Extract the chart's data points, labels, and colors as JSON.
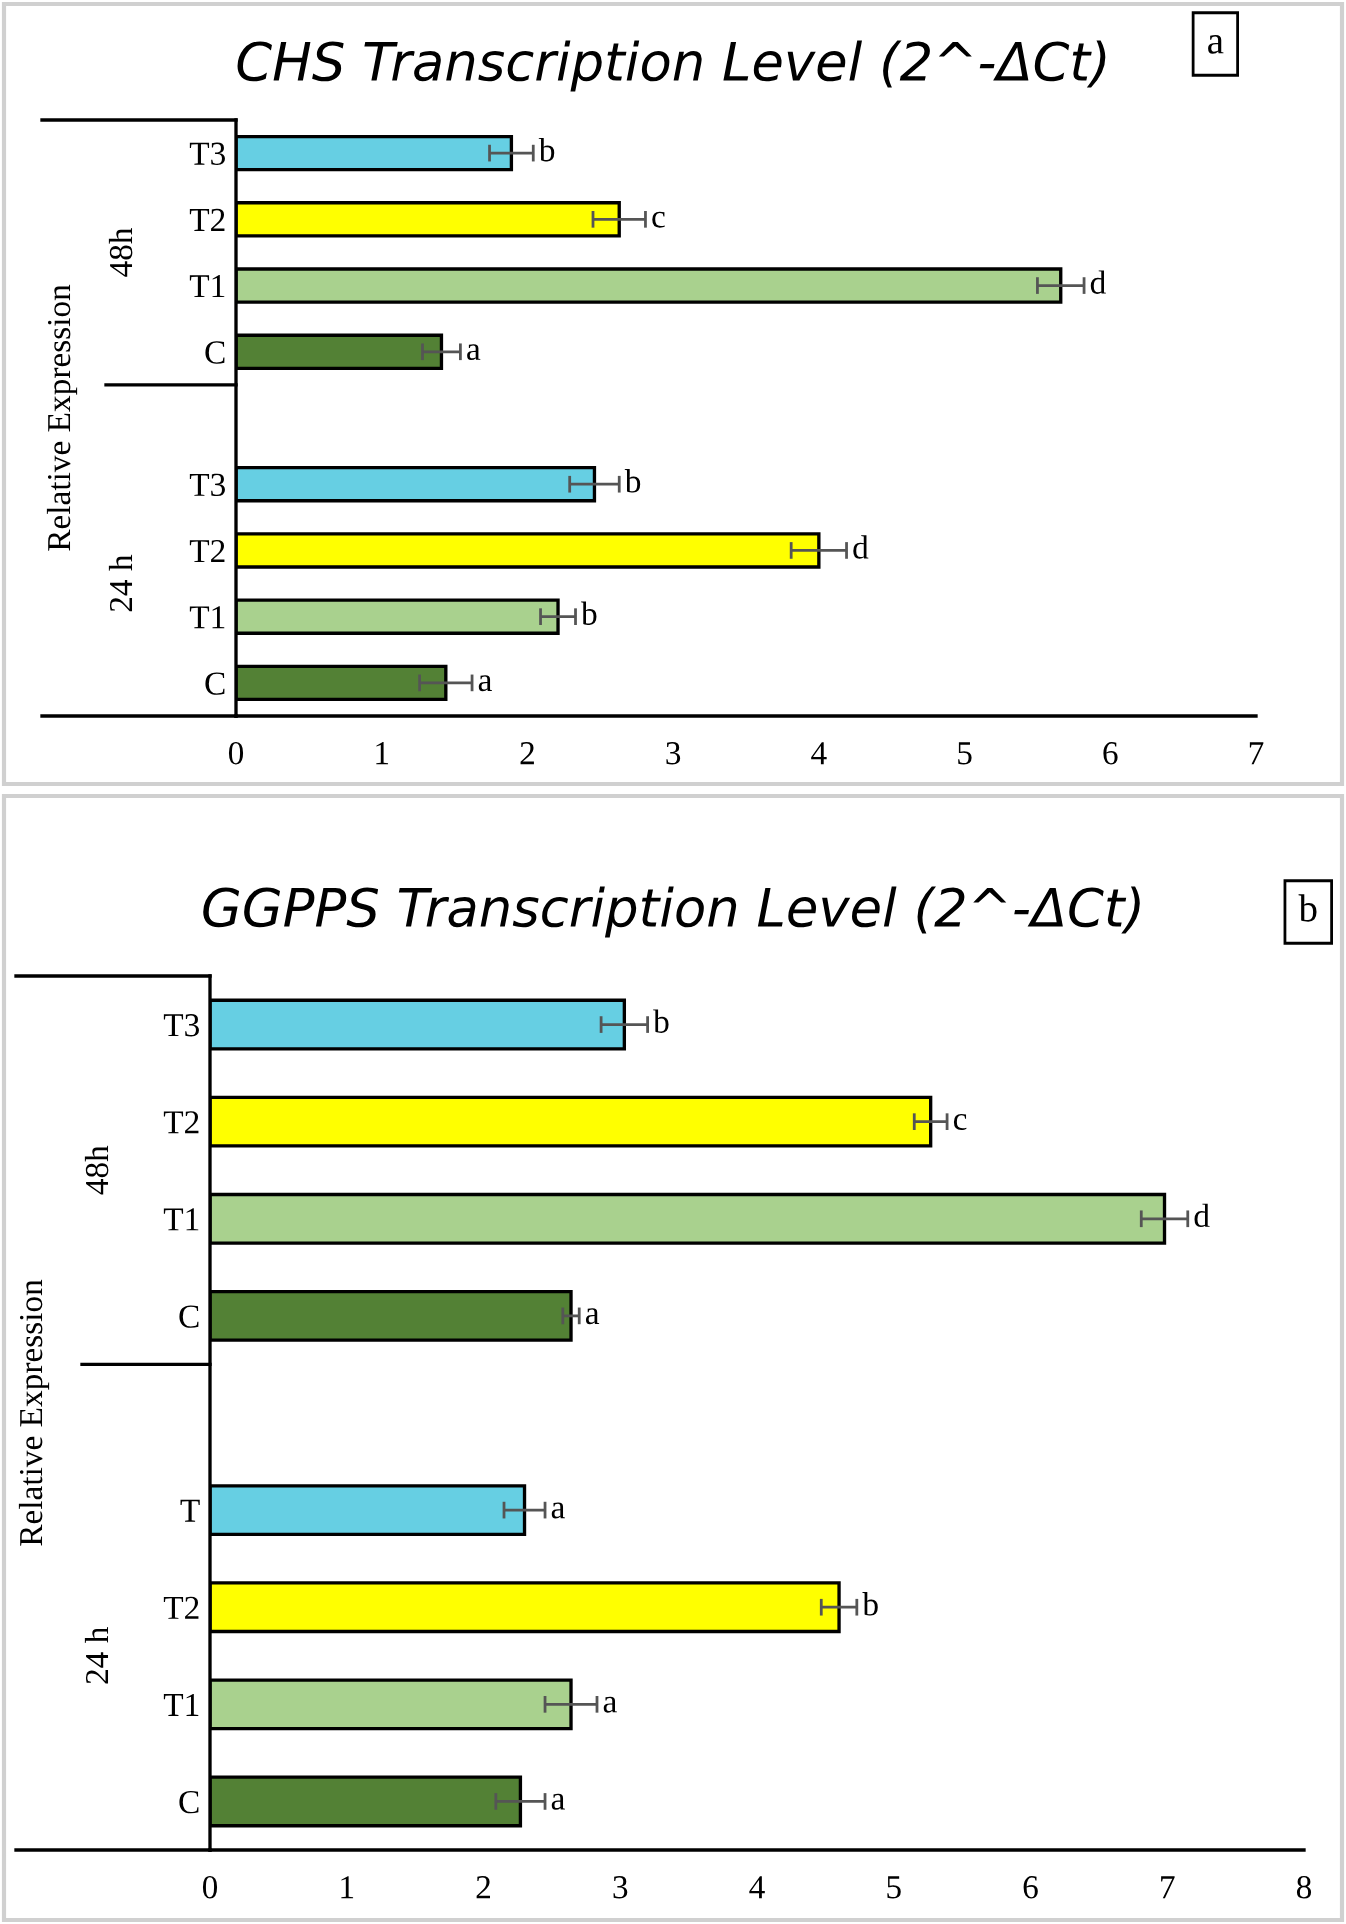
{
  "chart_data": [
    {
      "type": "bar",
      "orientation": "horizontal",
      "title": "CHS Transcription Level (2^-ΔCt)",
      "ylabel": "Relative Expression",
      "categories": [
        "T3",
        "T2",
        "T1",
        "C",
        null,
        "T3",
        "T2",
        "T1",
        "C"
      ],
      "values": [
        1.89,
        2.63,
        5.66,
        1.41,
        null,
        2.46,
        4.0,
        2.21,
        1.44
      ],
      "errors": [
        0.15,
        0.18,
        0.16,
        0.13,
        null,
        0.17,
        0.19,
        0.12,
        0.18
      ],
      "colors": [
        "#66cfe3",
        "#ffff00",
        "#a9d18e",
        "#538135",
        null,
        "#66cfe3",
        "#ffff00",
        "#a9d18e",
        "#538135"
      ],
      "value_labels": [
        "b",
        "c",
        "d",
        "a",
        null,
        "b",
        "d",
        "b",
        "a"
      ],
      "xlim": [
        0,
        7
      ],
      "xticks": [
        0,
        1,
        2,
        3,
        4,
        5,
        6,
        7
      ],
      "grid": false,
      "legend": false,
      "annotations": [
        "48h",
        "24 h",
        "a"
      ]
    },
    {
      "type": "bar",
      "orientation": "horizontal",
      "title": "GGPPS Transcription Level (2^-ΔCt)",
      "ylabel": "Relative Expression",
      "categories": [
        "T3",
        "T2",
        "T1",
        "C",
        null,
        "T",
        "T2",
        "T1",
        "C"
      ],
      "values": [
        3.03,
        5.27,
        6.98,
        2.64,
        null,
        2.3,
        4.6,
        2.64,
        2.27
      ],
      "errors": [
        0.17,
        0.12,
        0.17,
        0.06,
        null,
        0.15,
        0.13,
        0.19,
        0.18
      ],
      "colors": [
        "#66cfe3",
        "#ffff00",
        "#a9d18e",
        "#538135",
        null,
        "#66cfe3",
        "#ffff00",
        "#a9d18e",
        "#538135"
      ],
      "value_labels": [
        "b",
        "c",
        "d",
        "a",
        null,
        "a",
        "b",
        "a",
        "a"
      ],
      "xlim": [
        0,
        8
      ],
      "xticks": [
        0,
        1,
        2,
        3,
        4,
        5,
        6,
        7,
        8
      ],
      "grid": false,
      "legend": false,
      "annotations": [
        "48h",
        "24 h",
        "b"
      ]
    }
  ]
}
